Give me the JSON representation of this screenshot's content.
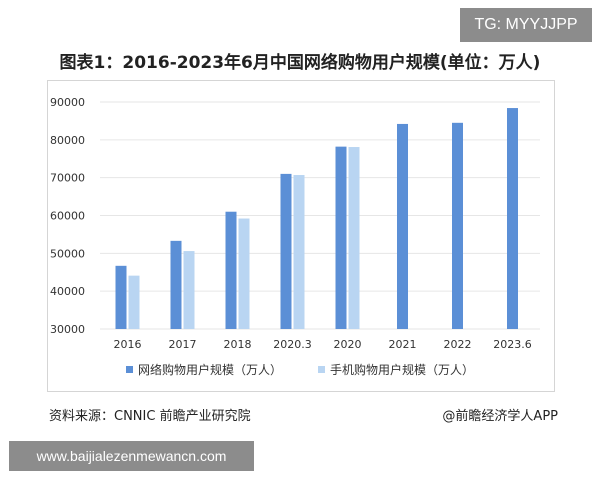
{
  "watermark_top": "TG: MYYJJPP",
  "source": "资料来源：CNNIC 前瞻产业研究院",
  "brand": "@前瞻经济学人APP",
  "watermark_bottom": "www.baijialezenmewancn.com",
  "colors": {
    "series_dark": "#5b8fd6",
    "series_light": "#b9d5f2",
    "grid": "#e6e6e6",
    "axis_text": "#333333"
  },
  "chart_data": {
    "type": "bar",
    "title": "图表1：2016-2023年6月中国网络购物用户规模(单位：万人)",
    "categories": [
      "2016",
      "2017",
      "2018",
      "2020.3",
      "2020",
      "2021",
      "2022",
      "2023.6"
    ],
    "ylim": [
      30000,
      90000
    ],
    "yticks": [
      30000,
      40000,
      50000,
      60000,
      70000,
      80000,
      90000
    ],
    "grid": true,
    "legend_position": "bottom",
    "series": [
      {
        "name": "网络购物用户规模（万人）",
        "values": [
          46700,
          53300,
          61000,
          71000,
          78200,
          84200,
          84500,
          88400
        ]
      },
      {
        "name": "手机购物用户规模（万人）",
        "values": [
          44100,
          50600,
          59200,
          70700,
          78100,
          null,
          null,
          null
        ]
      }
    ]
  }
}
